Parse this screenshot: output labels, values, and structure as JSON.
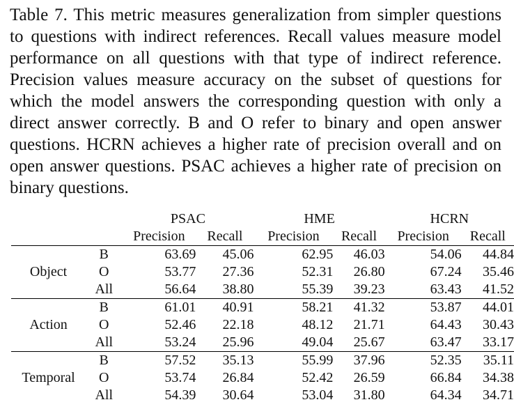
{
  "caption": "Table 7.  This metric measures generalization from simpler ques­tions to questions with indirect references. Recall values measure model performance on all questions with that type of indirect ref­erence. Precision values measure accuracy on the subset of ques­tions for which the model answers the corresponding question with only a direct answer correctly.  B and O refer to binary and open answer questions. HCRN achieves a higher rate of precision over­all and on open answer questions. PSAC achieves a higher rate of precision on binary questions.",
  "table": {
    "models": [
      "PSAC",
      "HME",
      "HCRN"
    ],
    "metric_headers": [
      "Precision",
      "Recall",
      "Precision",
      "Recall",
      "Precision",
      "Recall"
    ],
    "groups": [
      {
        "name": "Object",
        "rows": [
          {
            "type": "B",
            "values": [
              "63.69",
              "45.06",
              "62.95",
              "46.03",
              "54.06",
              "44.84"
            ],
            "bold": [
              true,
              false,
              false,
              true,
              false,
              false
            ]
          },
          {
            "type": "O",
            "values": [
              "53.77",
              "27.36",
              "52.31",
              "26.80",
              "67.24",
              "35.46"
            ],
            "bold": [
              false,
              false,
              false,
              false,
              true,
              true
            ]
          },
          {
            "type": "All",
            "values": [
              "56.64",
              "38.80",
              "55.39",
              "39.23",
              "63.43",
              "41.52"
            ],
            "bold": [
              false,
              false,
              false,
              false,
              true,
              true
            ]
          }
        ]
      },
      {
        "name": "Action",
        "rows": [
          {
            "type": "B",
            "values": [
              "61.01",
              "40.91",
              "58.21",
              "41.32",
              "53.87",
              "44.01"
            ],
            "bold": [
              true,
              false,
              false,
              false,
              false,
              true
            ]
          },
          {
            "type": "O",
            "values": [
              "52.46",
              "22.18",
              "48.12",
              "21.71",
              "64.43",
              "30.43"
            ],
            "bold": [
              false,
              false,
              false,
              false,
              true,
              true
            ]
          },
          {
            "type": "All",
            "values": [
              "53.24",
              "25.96",
              "49.04",
              "25.67",
              "63.47",
              "33.17"
            ],
            "bold": [
              false,
              false,
              false,
              false,
              true,
              true
            ]
          }
        ]
      },
      {
        "name": "Temporal",
        "rows": [
          {
            "type": "B",
            "values": [
              "57.52",
              "35.13",
              "55.99",
              "37.96",
              "52.35",
              "35.11"
            ],
            "bold": [
              true,
              false,
              false,
              true,
              false,
              false
            ]
          },
          {
            "type": "O",
            "values": [
              "53.74",
              "26.84",
              "52.42",
              "26.59",
              "66.84",
              "34.38"
            ],
            "bold": [
              false,
              false,
              false,
              false,
              true,
              true
            ]
          },
          {
            "type": "All",
            "values": [
              "54.39",
              "30.64",
              "53.04",
              "31.80",
              "64.34",
              "34.71"
            ],
            "bold": [
              false,
              false,
              false,
              false,
              true,
              true
            ]
          }
        ]
      }
    ]
  }
}
